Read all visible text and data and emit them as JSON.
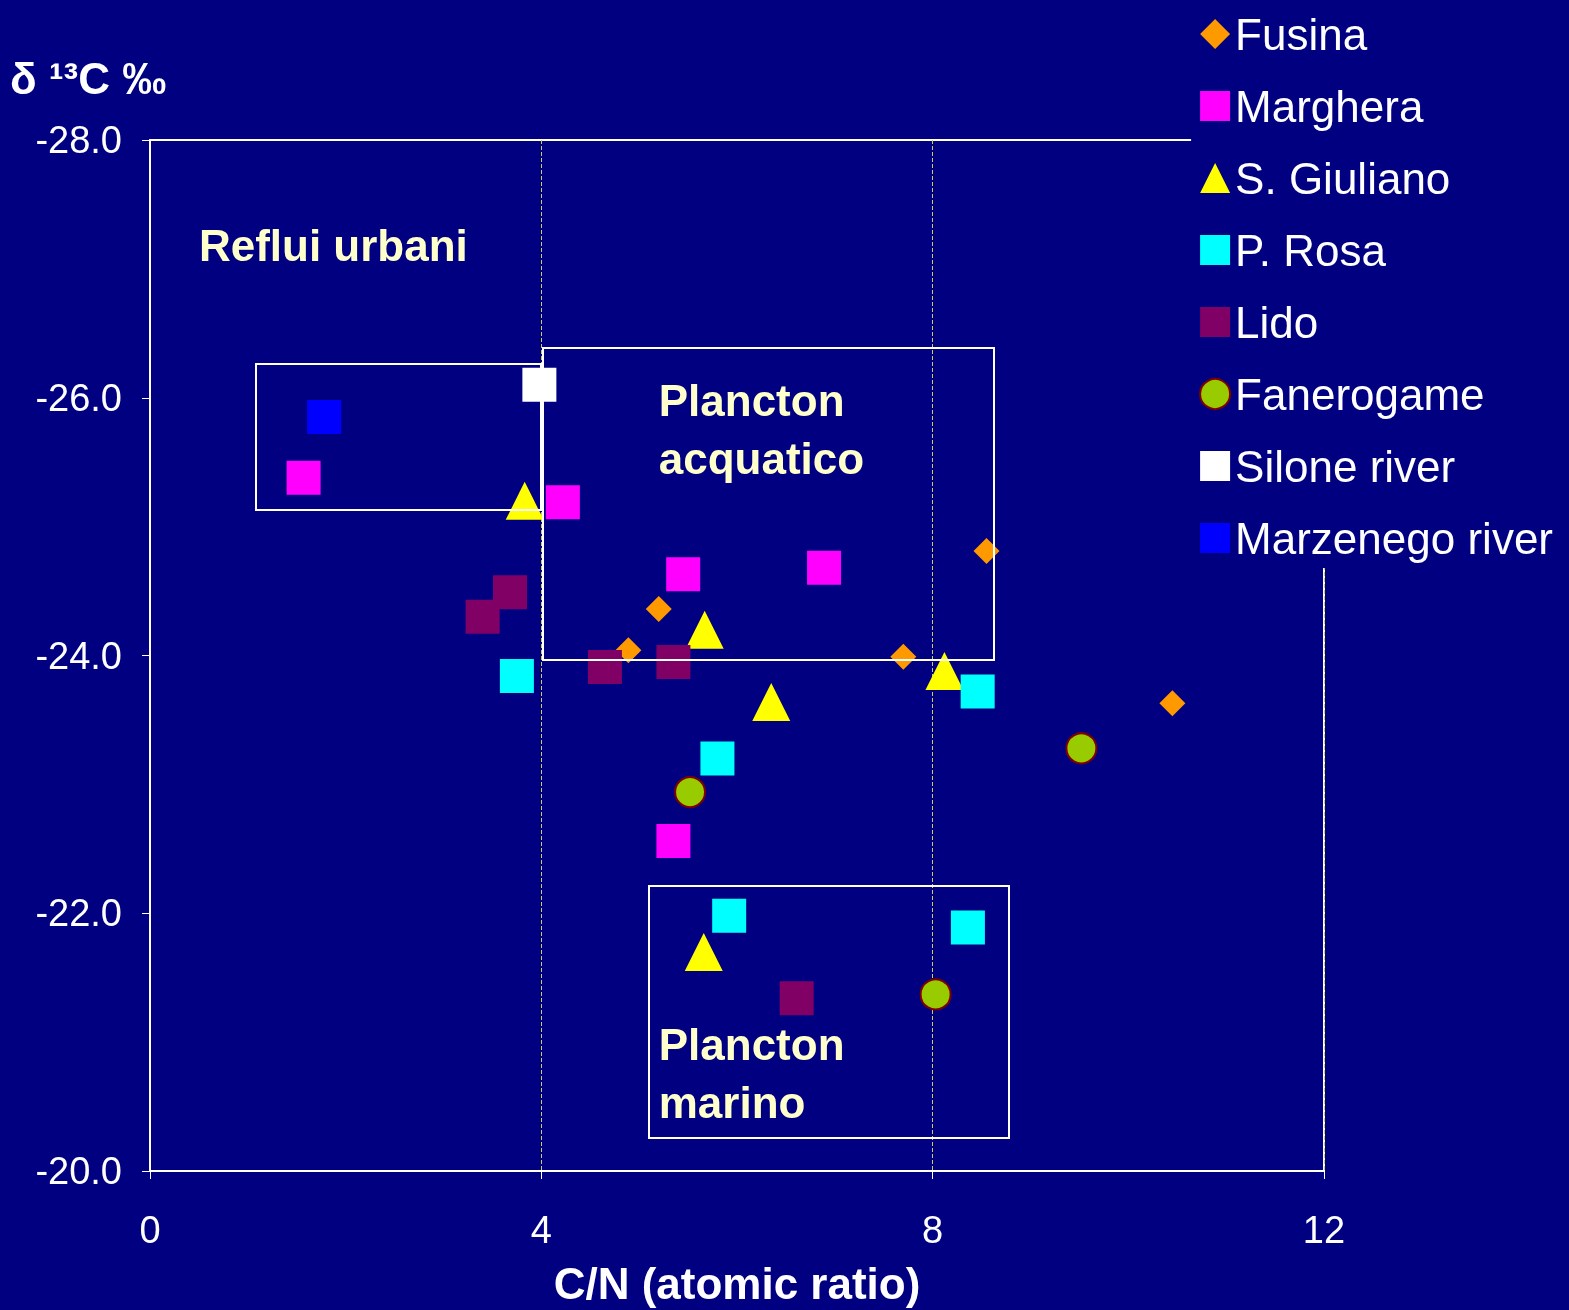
{
  "chart_data": {
    "type": "scatter",
    "xlabel": "C/N (atomic ratio)",
    "ylabel": "δ ¹³C ‰",
    "xlim": [
      0,
      12
    ],
    "xticks": [
      0,
      4,
      8,
      12
    ],
    "ylim": [
      -20,
      -28
    ],
    "yticks": [
      {
        "value": -28,
        "label": "-28.0"
      },
      {
        "value": -26,
        "label": "-26.0"
      },
      {
        "value": -24,
        "label": "-24.0"
      },
      {
        "value": -22,
        "label": "-22.0"
      },
      {
        "value": -20,
        "label": "-20.0"
      }
    ],
    "grid": "x",
    "legend": "top right",
    "annotations": [
      "Reflui urbani",
      "Plancton acquatico",
      "Plancton marino"
    ],
    "series": [
      {
        "name": "Fusina",
        "color": "#ff9900",
        "marker": "diamond",
        "x": [
          4.89,
          5.2,
          7.7,
          8.55,
          10.45
        ],
        "values": [
          -24.04,
          -24.36,
          -23.99,
          -24.81,
          -23.63
        ]
      },
      {
        "name": "Marghera",
        "color": "#ff00ff",
        "marker": "square",
        "x": [
          1.57,
          4.22,
          5.45,
          6.89,
          5.35
        ],
        "values": [
          -25.38,
          -25.19,
          -24.63,
          -24.68,
          -22.56
        ]
      },
      {
        "name": "S. Giuliano",
        "color": "#ffff00",
        "marker": "triangle",
        "x": [
          3.83,
          5.67,
          6.35,
          8.12,
          5.66
        ],
        "values": [
          -25.2,
          -24.2,
          -23.64,
          -23.88,
          -21.7
        ]
      },
      {
        "name": "P. Rosa",
        "color": "#00ffff",
        "marker": "square",
        "x": [
          3.75,
          5.8,
          8.46,
          5.92,
          8.36
        ],
        "values": [
          -23.84,
          -23.2,
          -23.72,
          -21.98,
          -21.89
        ]
      },
      {
        "name": "Lido",
        "color": "#800066",
        "marker": "square",
        "x": [
          3.4,
          3.68,
          4.65,
          5.35,
          6.61
        ],
        "values": [
          -24.3,
          -24.49,
          -23.91,
          -23.95,
          -21.34
        ]
      },
      {
        "name": "Fanerogame",
        "color": "#99cc00",
        "marker": "circle",
        "x": [
          5.52,
          9.52,
          8.03
        ],
        "values": [
          -22.94,
          -23.28,
          -21.37
        ]
      },
      {
        "name": "Silone river",
        "color": "#ffffff",
        "marker": "square",
        "x": [
          3.98
        ],
        "values": [
          -26.1
        ]
      },
      {
        "name": "Marzenego river",
        "color": "#0000ff",
        "marker": "square",
        "x": [
          1.78
        ],
        "values": [
          -25.85
        ]
      }
    ]
  }
}
